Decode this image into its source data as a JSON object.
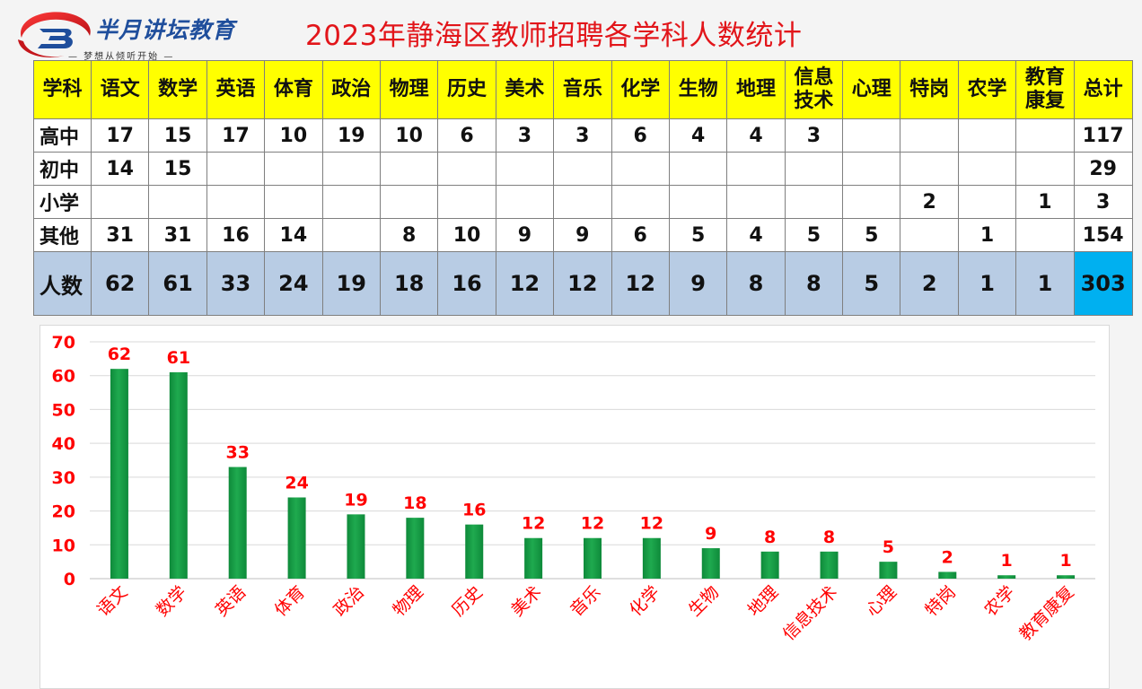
{
  "logo": {
    "name": "半月讲坛教育",
    "tagline": "— 梦想从倾听开始 —",
    "colors": {
      "red": "#e2151a",
      "blue": "#1f4e9c"
    }
  },
  "title": "2023年静海区教师招聘各学科人数统计",
  "table": {
    "header": [
      "学科",
      "语文",
      "数学",
      "英语",
      "体育",
      "政治",
      "物理",
      "历史",
      "美术",
      "音乐",
      "化学",
      "生物",
      "地理",
      "信息技术",
      "心理",
      "特岗",
      "农学",
      "教育康复",
      "总计"
    ],
    "rows": [
      {
        "label": "高中",
        "cells": [
          "17",
          "15",
          "17",
          "10",
          "19",
          "10",
          "6",
          "3",
          "3",
          "6",
          "4",
          "4",
          "3",
          "",
          "",
          "",
          "",
          "117"
        ]
      },
      {
        "label": "初中",
        "cells": [
          "14",
          "15",
          "",
          "",
          "",
          "",
          "",
          "",
          "",
          "",
          "",
          "",
          "",
          "",
          "",
          "",
          "",
          "29"
        ]
      },
      {
        "label": "小学",
        "cells": [
          "",
          "",
          "",
          "",
          "",
          "",
          "",
          "",
          "",
          "",
          "",
          "",
          "",
          "",
          "2",
          "",
          "1",
          "3"
        ]
      },
      {
        "label": "其他",
        "cells": [
          "31",
          "31",
          "16",
          "14",
          "",
          "8",
          "10",
          "9",
          "9",
          "6",
          "5",
          "4",
          "5",
          "5",
          "",
          "1",
          "",
          "154"
        ]
      }
    ],
    "sum_row": {
      "label": "人数",
      "cells": [
        "62",
        "61",
        "33",
        "24",
        "19",
        "18",
        "16",
        "12",
        "12",
        "12",
        "9",
        "8",
        "8",
        "5",
        "2",
        "1",
        "1",
        "303"
      ]
    },
    "colors": {
      "header_bg": "#ffff00",
      "sum_bg": "#b8cce4",
      "total_bg": "#00b0f0"
    }
  },
  "chart_data": {
    "type": "bar",
    "categories": [
      "语文",
      "数学",
      "英语",
      "体育",
      "政治",
      "物理",
      "历史",
      "美术",
      "音乐",
      "化学",
      "生物",
      "地理",
      "信息技术",
      "心理",
      "特岗",
      "农学",
      "教育康复"
    ],
    "values": [
      62,
      61,
      33,
      24,
      19,
      18,
      16,
      12,
      12,
      12,
      9,
      8,
      8,
      5,
      2,
      1,
      1
    ],
    "ylim": [
      0,
      70
    ],
    "yticks": [
      0,
      10,
      20,
      30,
      40,
      50,
      60,
      70
    ],
    "grid": true,
    "data_labels": true,
    "label_color": "#ff0000",
    "bar_color": "#1faa4f"
  }
}
